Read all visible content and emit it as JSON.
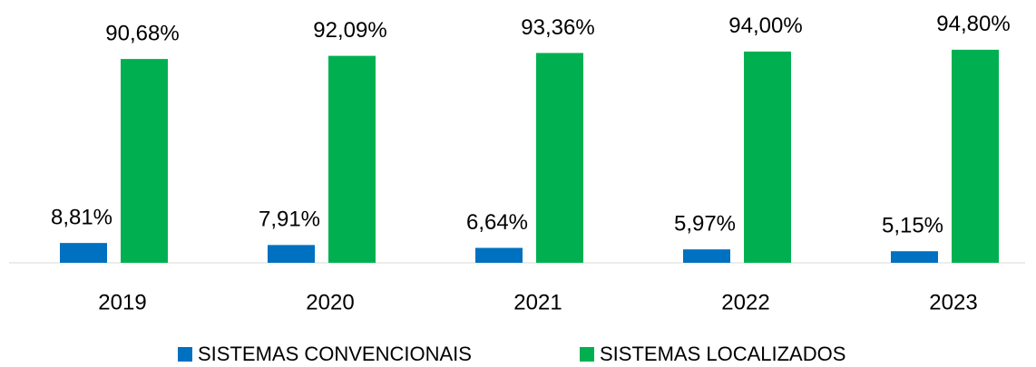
{
  "chart_data": {
    "type": "bar",
    "categories": [
      "2019",
      "2020",
      "2021",
      "2022",
      "2023"
    ],
    "series": [
      {
        "name": "SISTEMAS CONVENCIONAIS",
        "color": "#0070c0",
        "values": [
          8.81,
          7.91,
          6.64,
          5.97,
          5.15
        ],
        "value_labels": [
          "8,81%",
          "7,91%",
          "6,64%",
          "5,97%",
          "5,15%"
        ]
      },
      {
        "name": "SISTEMAS LOCALIZADOS",
        "color": "#00b050",
        "values": [
          90.68,
          92.09,
          93.36,
          94.0,
          94.8
        ],
        "value_labels": [
          "90,68%",
          "92,09%",
          "93,36%",
          "94,00%",
          "94,80%"
        ]
      }
    ],
    "ylim": [
      0,
      100
    ],
    "legend": "bottom"
  }
}
